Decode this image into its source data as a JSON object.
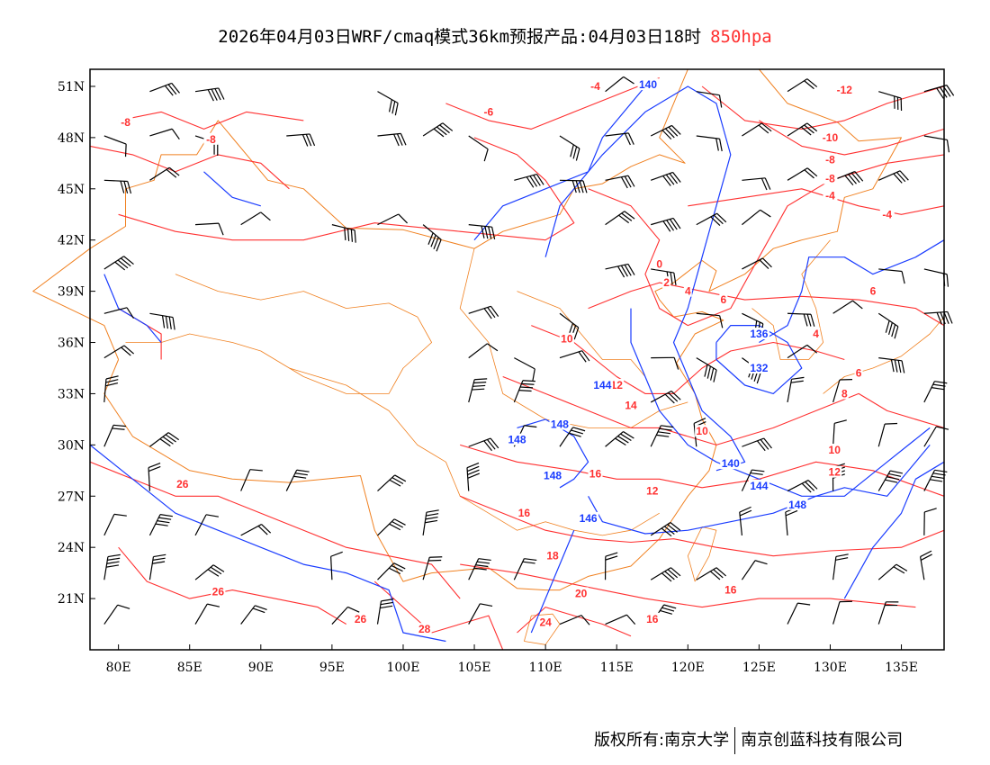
{
  "title": {
    "text": "2026年04月03日WRF/cmaq模式36km预报产品:04月03日18时",
    "level": "850hpa"
  },
  "footer": {
    "left": "版权所有:南京大学",
    "right": "南京创蓝科技有限公司"
  },
  "colors": {
    "temperature": "#ff3030",
    "height": "#1a3cff",
    "boundary": "#f08020",
    "wind": "#000000"
  },
  "axes": {
    "lon_range": [
      78,
      138
    ],
    "lat_range": [
      18,
      52
    ],
    "lon_ticks": [
      {
        "v": 80,
        "t": "80E"
      },
      {
        "v": 85,
        "t": "85E"
      },
      {
        "v": 90,
        "t": "90E"
      },
      {
        "v": 95,
        "t": "95E"
      },
      {
        "v": 100,
        "t": "100E"
      },
      {
        "v": 105,
        "t": "105E"
      },
      {
        "v": 110,
        "t": "110E"
      },
      {
        "v": 115,
        "t": "115E"
      },
      {
        "v": 120,
        "t": "120E"
      },
      {
        "v": 125,
        "t": "125E"
      },
      {
        "v": 130,
        "t": "130E"
      },
      {
        "v": 135,
        "t": "135E"
      }
    ],
    "lat_ticks": [
      {
        "v": 21,
        "t": "21N"
      },
      {
        "v": 24,
        "t": "24N"
      },
      {
        "v": 27,
        "t": "27N"
      },
      {
        "v": 30,
        "t": "30N"
      },
      {
        "v": 33,
        "t": "33N"
      },
      {
        "v": 36,
        "t": "36N"
      },
      {
        "v": 39,
        "t": "39N"
      },
      {
        "v": 42,
        "t": "42N"
      },
      {
        "v": 45,
        "t": "45N"
      },
      {
        "v": 48,
        "t": "48N"
      },
      {
        "v": 51,
        "t": "51N"
      }
    ]
  },
  "temp_labels": [
    {
      "t": "-4",
      "lon": 113.5,
      "lat": 51
    },
    {
      "t": "-6",
      "lon": 106,
      "lat": 49.5
    },
    {
      "t": "-8",
      "lon": 80.5,
      "lat": 48.9
    },
    {
      "t": "-8",
      "lon": 86.5,
      "lat": 47.9
    },
    {
      "t": "-12",
      "lon": 131,
      "lat": 50.8
    },
    {
      "t": "-10",
      "lon": 130,
      "lat": 48
    },
    {
      "t": "-8",
      "lon": 130,
      "lat": 46.7
    },
    {
      "t": "-8",
      "lon": 130,
      "lat": 45.6
    },
    {
      "t": "-4",
      "lon": 130,
      "lat": 44.6
    },
    {
      "t": "-4",
      "lon": 134,
      "lat": 43.5
    },
    {
      "t": "0",
      "lon": 118,
      "lat": 40.6
    },
    {
      "t": "2",
      "lon": 118.5,
      "lat": 39.5
    },
    {
      "t": "4",
      "lon": 120,
      "lat": 39
    },
    {
      "t": "6",
      "lon": 122.5,
      "lat": 38.5
    },
    {
      "t": "6",
      "lon": 133,
      "lat": 39
    },
    {
      "t": "4",
      "lon": 129,
      "lat": 36.5
    },
    {
      "t": "10",
      "lon": 111.5,
      "lat": 36.2
    },
    {
      "t": "12",
      "lon": 115,
      "lat": 33.5
    },
    {
      "t": "14",
      "lon": 116,
      "lat": 32.3
    },
    {
      "t": "10",
      "lon": 121,
      "lat": 30.8
    },
    {
      "t": "6",
      "lon": 132,
      "lat": 34.2
    },
    {
      "t": "8",
      "lon": 131,
      "lat": 33
    },
    {
      "t": "10",
      "lon": 130.3,
      "lat": 29.7
    },
    {
      "t": "12",
      "lon": 130.3,
      "lat": 28.4
    },
    {
      "t": "16",
      "lon": 113.5,
      "lat": 28.3
    },
    {
      "t": "12",
      "lon": 117.5,
      "lat": 27.3
    },
    {
      "t": "16",
      "lon": 108.5,
      "lat": 26
    },
    {
      "t": "18",
      "lon": 110.5,
      "lat": 23.5
    },
    {
      "t": "20",
      "lon": 112.5,
      "lat": 21.3
    },
    {
      "t": "16",
      "lon": 117.5,
      "lat": 19.8
    },
    {
      "t": "16",
      "lon": 123,
      "lat": 21.5
    },
    {
      "t": "24",
      "lon": 110,
      "lat": 19.6
    },
    {
      "t": "26",
      "lon": 97,
      "lat": 19.8
    },
    {
      "t": "28",
      "lon": 101.5,
      "lat": 19.2
    },
    {
      "t": "26",
      "lon": 84.5,
      "lat": 27.7
    },
    {
      "t": "26",
      "lon": 87,
      "lat": 21.4
    }
  ],
  "height_labels": [
    {
      "t": "140",
      "lon": 117.2,
      "lat": 51.1
    },
    {
      "t": "136",
      "lon": 125,
      "lat": 36.5
    },
    {
      "t": "132",
      "lon": 125,
      "lat": 34.5
    },
    {
      "t": "144",
      "lon": 114,
      "lat": 33.5
    },
    {
      "t": "148",
      "lon": 111,
      "lat": 31.2
    },
    {
      "t": "148",
      "lon": 108,
      "lat": 30.3
    },
    {
      "t": "148",
      "lon": 110.5,
      "lat": 28.2
    },
    {
      "t": "146",
      "lon": 113,
      "lat": 25.7
    },
    {
      "t": "140",
      "lon": 123,
      "lat": 28.9
    },
    {
      "t": "144",
      "lon": 125,
      "lat": 27.6
    },
    {
      "t": "148",
      "lon": 127.7,
      "lat": 26.5
    }
  ]
}
